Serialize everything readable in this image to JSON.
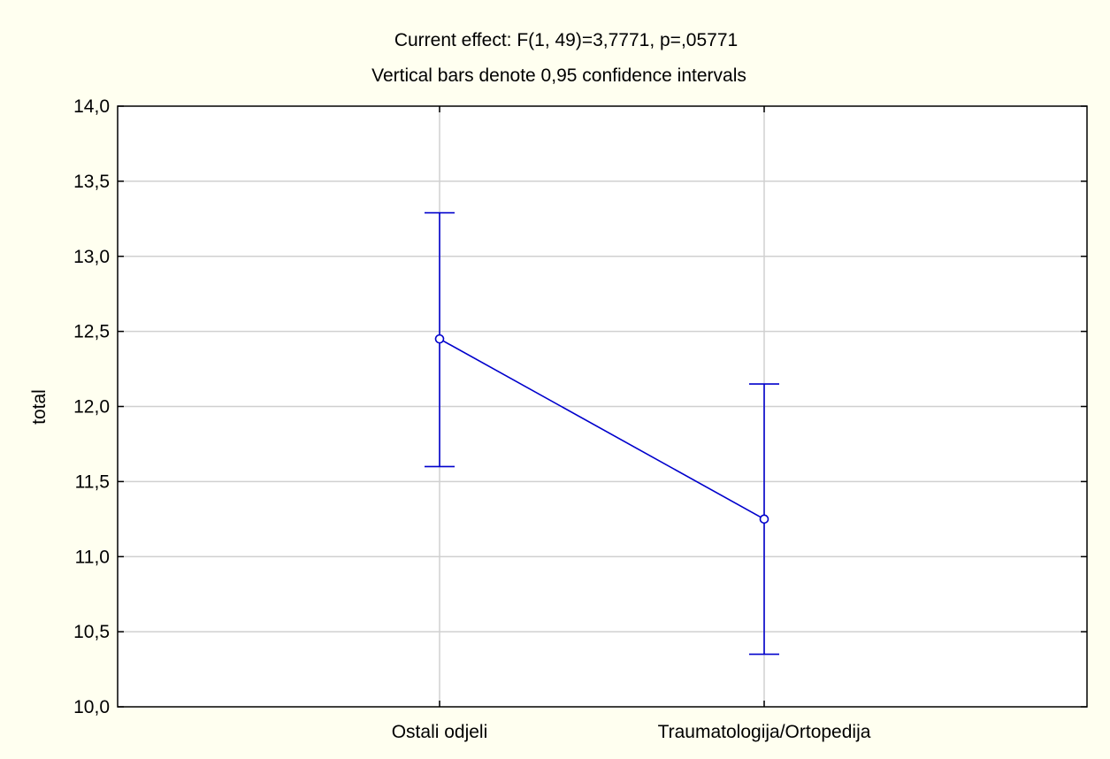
{
  "chart_data": {
    "type": "line",
    "title": "Current effect: F(1, 49)=3,7771, p=,05771",
    "subtitle": "Vertical bars denote 0,95 confidence intervals",
    "xlabel": "",
    "ylabel": "total",
    "categories": [
      "Ostali odjeli",
      "Traumatologija/Ortopedija"
    ],
    "series": [
      {
        "values": [
          12.45,
          11.25
        ],
        "ci_lower": [
          11.6,
          10.35
        ],
        "ci_upper": [
          13.29,
          12.15
        ]
      }
    ],
    "ylim": [
      10.0,
      14.0
    ],
    "y_ticks": [
      10.0,
      10.5,
      11.0,
      11.5,
      12.0,
      12.5,
      13.0,
      13.5,
      14.0
    ],
    "y_tick_labels": [
      "10,0",
      "10,5",
      "11,0",
      "11,5",
      "12,0",
      "12,5",
      "13,0",
      "13,5",
      "14,0"
    ],
    "grid": true,
    "colors": {
      "background": "#FFFFF0",
      "plot_background": "#FFFFFF",
      "series": "#0000CC",
      "grid": "#D0D0D0",
      "axis": "#000000"
    }
  }
}
